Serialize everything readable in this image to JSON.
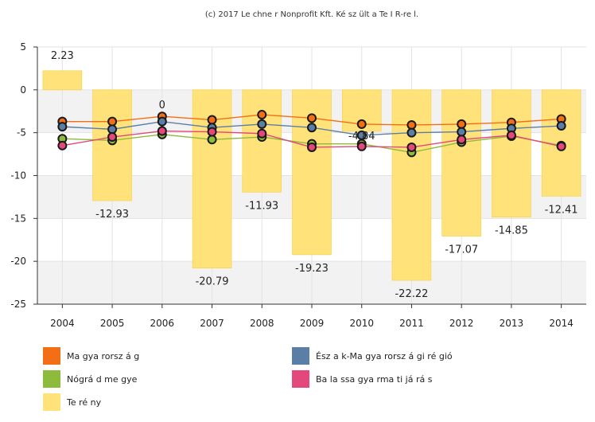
{
  "caption": "(c) 2017 Le chne r Nonprofit Kft. Ké sz ült a Te I R-re l.",
  "chart_data": {
    "type": "bar",
    "categories": [
      "2004",
      "2005",
      "2006",
      "2007",
      "2008",
      "2009",
      "2010",
      "2011",
      "2012",
      "2013",
      "2014"
    ],
    "ylim": [
      -25,
      5
    ],
    "yticks": [
      5,
      0,
      -5,
      -10,
      -15,
      -20,
      -25
    ],
    "grid": true,
    "legend_position": "bottom",
    "series": [
      {
        "name": "Ma gya rorsz á g",
        "type": "line",
        "color": "#f36f16",
        "values": [
          -3.7,
          -3.7,
          -3.1,
          -3.5,
          -2.9,
          -3.3,
          -4.0,
          -4.1,
          -4.0,
          -3.8,
          -3.4
        ]
      },
      {
        "name": "Ész a k-Ma gya rorsz á gi ré gió",
        "type": "line",
        "color": "#5a7ea6",
        "values": [
          -4.3,
          -4.6,
          -3.7,
          -4.4,
          -4.0,
          -4.4,
          -5.3,
          -5.0,
          -4.9,
          -4.5,
          -4.2
        ]
      },
      {
        "name": "Nógrá d me gye",
        "type": "line",
        "color": "#8dbb3c",
        "values": [
          -5.7,
          -5.9,
          -5.2,
          -5.8,
          -5.5,
          -6.3,
          -6.3,
          -7.3,
          -6.1,
          -5.4,
          -6.5
        ]
      },
      {
        "name": "Ba la ssa gya rma ti já rá s",
        "type": "line",
        "color": "#e4477b",
        "values": [
          -6.5,
          -5.5,
          -4.8,
          -4.9,
          -5.1,
          -6.7,
          -6.6,
          -6.7,
          -5.8,
          -5.3,
          -6.6
        ]
      },
      {
        "name": "Te ré ny",
        "type": "bar",
        "color": "#ffe27a",
        "values": [
          2.23,
          -12.93,
          0,
          -20.79,
          -11.93,
          -19.23,
          -4.84,
          -22.22,
          -17.07,
          -14.85,
          -12.41
        ]
      }
    ],
    "bar_labels": [
      "2.23",
      "-12.93",
      "0",
      "-20.79",
      "-11.93",
      "-19.23",
      "-4.84",
      "-22.22",
      "-17.07",
      "-14.85",
      "-12.41"
    ]
  }
}
